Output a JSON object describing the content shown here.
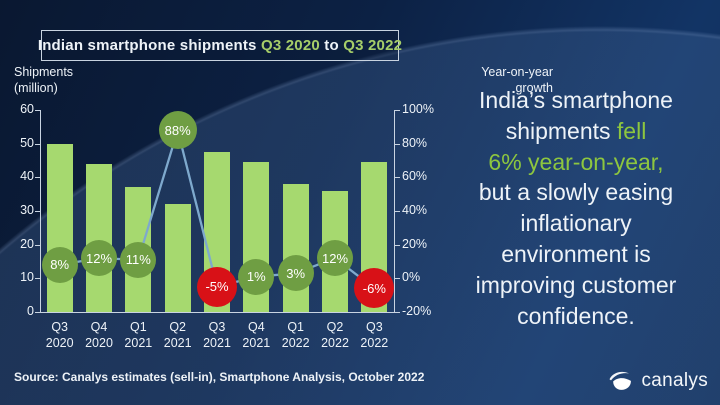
{
  "title": {
    "segments": [
      {
        "text": "Indian smartphone shipments ",
        "color": "white"
      },
      {
        "text": "Q3 2020",
        "color": "green"
      },
      {
        "text": " to ",
        "color": "white"
      },
      {
        "text": "Q3 2022",
        "color": "green"
      }
    ]
  },
  "axes": {
    "left_title_line1": "Shipments",
    "left_title_line2": "(million)",
    "right_title_line1": "Year-on-year",
    "right_title_line2": "growth",
    "left_ticks": [
      "60",
      "50",
      "40",
      "30",
      "20",
      "10",
      "0"
    ],
    "right_ticks": [
      "100%",
      "80%",
      "60%",
      "40%",
      "20%",
      "0%",
      "-20%"
    ]
  },
  "chart_data": {
    "type": "bar",
    "title": "Indian smartphone shipments Q3 2020 to Q3 2022",
    "categories": [
      "Q3 2020",
      "Q4 2020",
      "Q1 2021",
      "Q2 2021",
      "Q3 2021",
      "Q4 2021",
      "Q1 2022",
      "Q2 2022",
      "Q3 2022"
    ],
    "series": [
      {
        "name": "Shipments (million)",
        "kind": "bar",
        "values": [
          50,
          44,
          37,
          32,
          47.5,
          44.5,
          38,
          36,
          44.5
        ]
      },
      {
        "name": "Year-on-year growth",
        "kind": "line",
        "values": [
          8,
          12,
          11,
          88,
          -5,
          1,
          3,
          12,
          -6
        ],
        "labels": [
          "8%",
          "12%",
          "11%",
          "88%",
          "-5%",
          "1%",
          "3%",
          "12%",
          "-6%"
        ]
      }
    ],
    "ylabel_left": "Shipments (million)",
    "ylabel_right": "Year-on-year growth",
    "ylim_left": [
      0,
      60
    ],
    "ylim_right": [
      -20,
      100
    ],
    "grid": false,
    "legend": false
  },
  "headline": {
    "lines": [
      [
        {
          "text": "India’s smartphone",
          "color": "white"
        }
      ],
      [
        {
          "text": "shipments ",
          "color": "white"
        },
        {
          "text": "fell",
          "color": "green"
        }
      ],
      [
        {
          "text": "6% year-on-year,",
          "color": "green"
        }
      ],
      [
        {
          "text": "but a slowly easing",
          "color": "white"
        }
      ],
      [
        {
          "text": "inflationary",
          "color": "white"
        }
      ],
      [
        {
          "text": "environment is",
          "color": "white"
        }
      ],
      [
        {
          "text": "improving customer",
          "color": "white"
        }
      ],
      [
        {
          "text": "confidence.",
          "color": "white"
        }
      ]
    ]
  },
  "source": "Source: Canalys estimates (sell-in), Smartphone Analysis, October 2022",
  "logo": {
    "text": "canalys",
    "icon": "canalys-swoosh-icon"
  },
  "colors": {
    "bar": "#a6d96f",
    "circle_positive": "#6f9e43",
    "circle_negative": "#d81117",
    "line": "#7ea9cd",
    "green_text": "#8dc63f",
    "title_green": "#a6ce69",
    "axis": "#c9d4e2",
    "text": "#eef3f8"
  }
}
